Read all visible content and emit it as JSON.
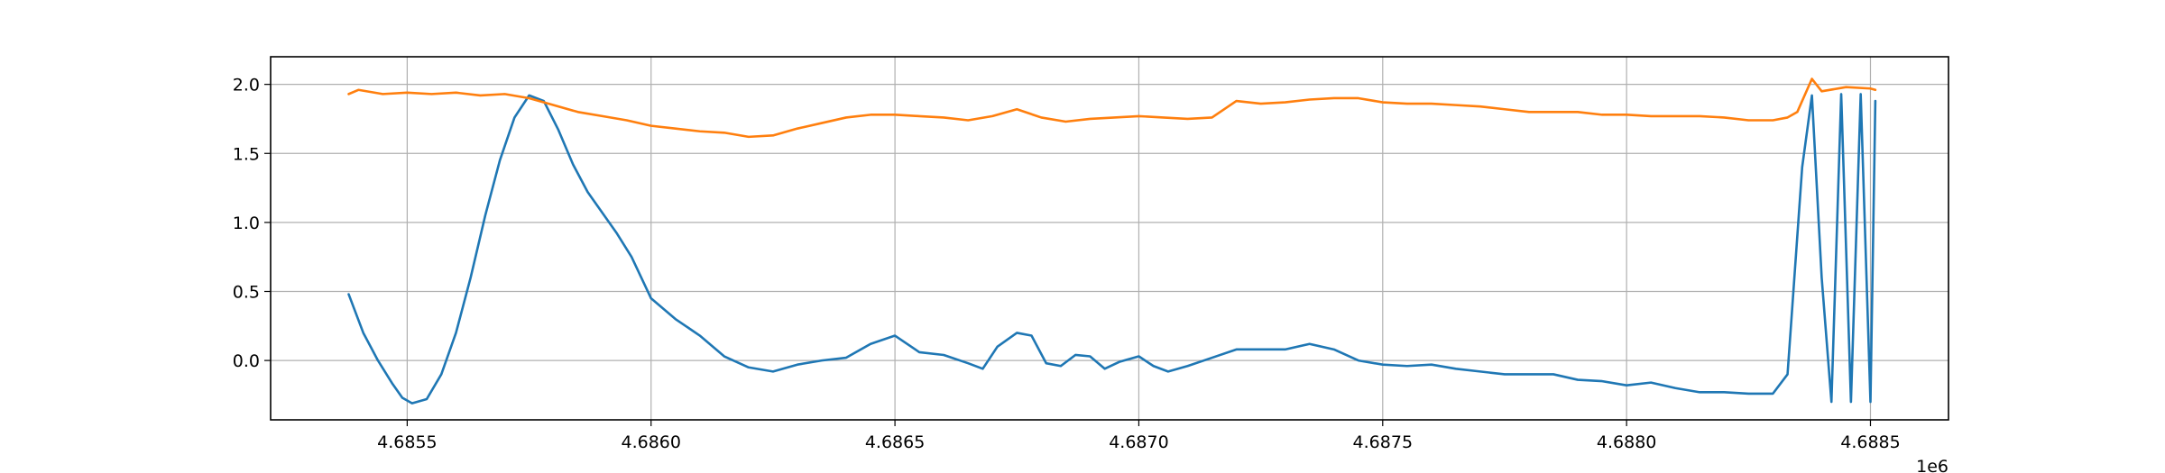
{
  "chart_data": {
    "type": "line",
    "title": "",
    "xlabel": "",
    "ylabel": "",
    "x_offset_label": "1e6",
    "xlim": [
      4.68522,
      4.68866
    ],
    "ylim": [
      -0.43,
      2.2
    ],
    "grid": true,
    "x_ticks": [
      4.6855,
      4.686,
      4.6865,
      4.687,
      4.6875,
      4.688,
      4.6885
    ],
    "x_tick_labels": [
      "4.6855",
      "4.6860",
      "4.6865",
      "4.6870",
      "4.6875",
      "4.6880",
      "4.6885"
    ],
    "y_ticks": [
      0.0,
      0.5,
      1.0,
      1.5,
      2.0
    ],
    "y_tick_labels": [
      "0.0",
      "0.5",
      "1.0",
      "1.5",
      "2.0"
    ],
    "series": [
      {
        "color": "#1f77b4",
        "x": [
          4.68538,
          4.68541,
          4.68544,
          4.68547,
          4.68549,
          4.68551,
          4.68554,
          4.68557,
          4.6856,
          4.68563,
          4.68566,
          4.68569,
          4.68572,
          4.68575,
          4.68578,
          4.68581,
          4.68584,
          4.68587,
          4.6859,
          4.68593,
          4.68596,
          4.686,
          4.68605,
          4.6861,
          4.68615,
          4.6862,
          4.68625,
          4.6863,
          4.68635,
          4.6864,
          4.68645,
          4.6865,
          4.68655,
          4.6866,
          4.68665,
          4.68668,
          4.68671,
          4.68675,
          4.68678,
          4.68681,
          4.68684,
          4.68687,
          4.6869,
          4.68693,
          4.68696,
          4.687,
          4.68703,
          4.68706,
          4.6871,
          4.68715,
          4.6872,
          4.68725,
          4.6873,
          4.68735,
          4.6874,
          4.68745,
          4.6875,
          4.68755,
          4.6876,
          4.68765,
          4.6877,
          4.68775,
          4.6878,
          4.68785,
          4.6879,
          4.68795,
          4.688,
          4.68805,
          4.6881,
          4.68815,
          4.6882,
          4.68825,
          4.6883,
          4.68833,
          4.68836,
          4.68838,
          4.6884,
          4.68842,
          4.68844,
          4.68846,
          4.68848,
          4.6885,
          4.68851
        ],
        "y": [
          0.48,
          0.2,
          0.0,
          -0.17,
          -0.27,
          -0.31,
          -0.28,
          -0.1,
          0.2,
          0.6,
          1.05,
          1.45,
          1.76,
          1.92,
          1.88,
          1.67,
          1.42,
          1.22,
          1.07,
          0.92,
          0.75,
          0.45,
          0.3,
          0.18,
          0.03,
          -0.05,
          -0.08,
          -0.03,
          0.0,
          0.02,
          0.12,
          0.18,
          0.06,
          0.04,
          -0.02,
          -0.06,
          0.1,
          0.2,
          0.18,
          -0.02,
          -0.04,
          0.04,
          0.03,
          -0.06,
          -0.01,
          0.03,
          -0.04,
          -0.08,
          -0.04,
          0.02,
          0.08,
          0.08,
          0.08,
          0.12,
          0.08,
          0.0,
          -0.03,
          -0.04,
          -0.03,
          -0.06,
          -0.08,
          -0.1,
          -0.1,
          -0.1,
          -0.14,
          -0.15,
          -0.18,
          -0.16,
          -0.2,
          -0.23,
          -0.23,
          -0.24,
          -0.24,
          -0.1,
          1.4,
          1.92,
          0.6,
          -0.3,
          1.93,
          -0.3,
          1.93,
          -0.3,
          1.88
        ]
      },
      {
        "color": "#ff7f0e",
        "x": [
          4.68538,
          4.6854,
          4.68545,
          4.6855,
          4.68555,
          4.6856,
          4.68565,
          4.6857,
          4.68575,
          4.6858,
          4.68585,
          4.6859,
          4.68595,
          4.686,
          4.68605,
          4.6861,
          4.68615,
          4.6862,
          4.68625,
          4.6863,
          4.68635,
          4.6864,
          4.68645,
          4.6865,
          4.68655,
          4.6866,
          4.68665,
          4.6867,
          4.68675,
          4.6868,
          4.68685,
          4.6869,
          4.68695,
          4.687,
          4.68705,
          4.6871,
          4.68715,
          4.6872,
          4.68725,
          4.6873,
          4.68735,
          4.6874,
          4.68745,
          4.6875,
          4.68755,
          4.6876,
          4.68765,
          4.6877,
          4.68775,
          4.6878,
          4.68785,
          4.6879,
          4.68795,
          4.688,
          4.68805,
          4.6881,
          4.68815,
          4.6882,
          4.68825,
          4.6883,
          4.68833,
          4.68835,
          4.68838,
          4.6884,
          4.68845,
          4.6885,
          4.68851
        ],
        "y": [
          1.93,
          1.96,
          1.93,
          1.94,
          1.93,
          1.94,
          1.92,
          1.93,
          1.9,
          1.85,
          1.8,
          1.77,
          1.74,
          1.7,
          1.68,
          1.66,
          1.65,
          1.62,
          1.63,
          1.68,
          1.72,
          1.76,
          1.78,
          1.78,
          1.77,
          1.76,
          1.74,
          1.77,
          1.82,
          1.76,
          1.73,
          1.75,
          1.76,
          1.77,
          1.76,
          1.75,
          1.76,
          1.88,
          1.86,
          1.87,
          1.89,
          1.9,
          1.9,
          1.87,
          1.86,
          1.86,
          1.85,
          1.84,
          1.82,
          1.8,
          1.8,
          1.8,
          1.78,
          1.78,
          1.77,
          1.77,
          1.77,
          1.76,
          1.74,
          1.74,
          1.76,
          1.8,
          2.04,
          1.95,
          1.98,
          1.97,
          1.96
        ]
      }
    ]
  }
}
